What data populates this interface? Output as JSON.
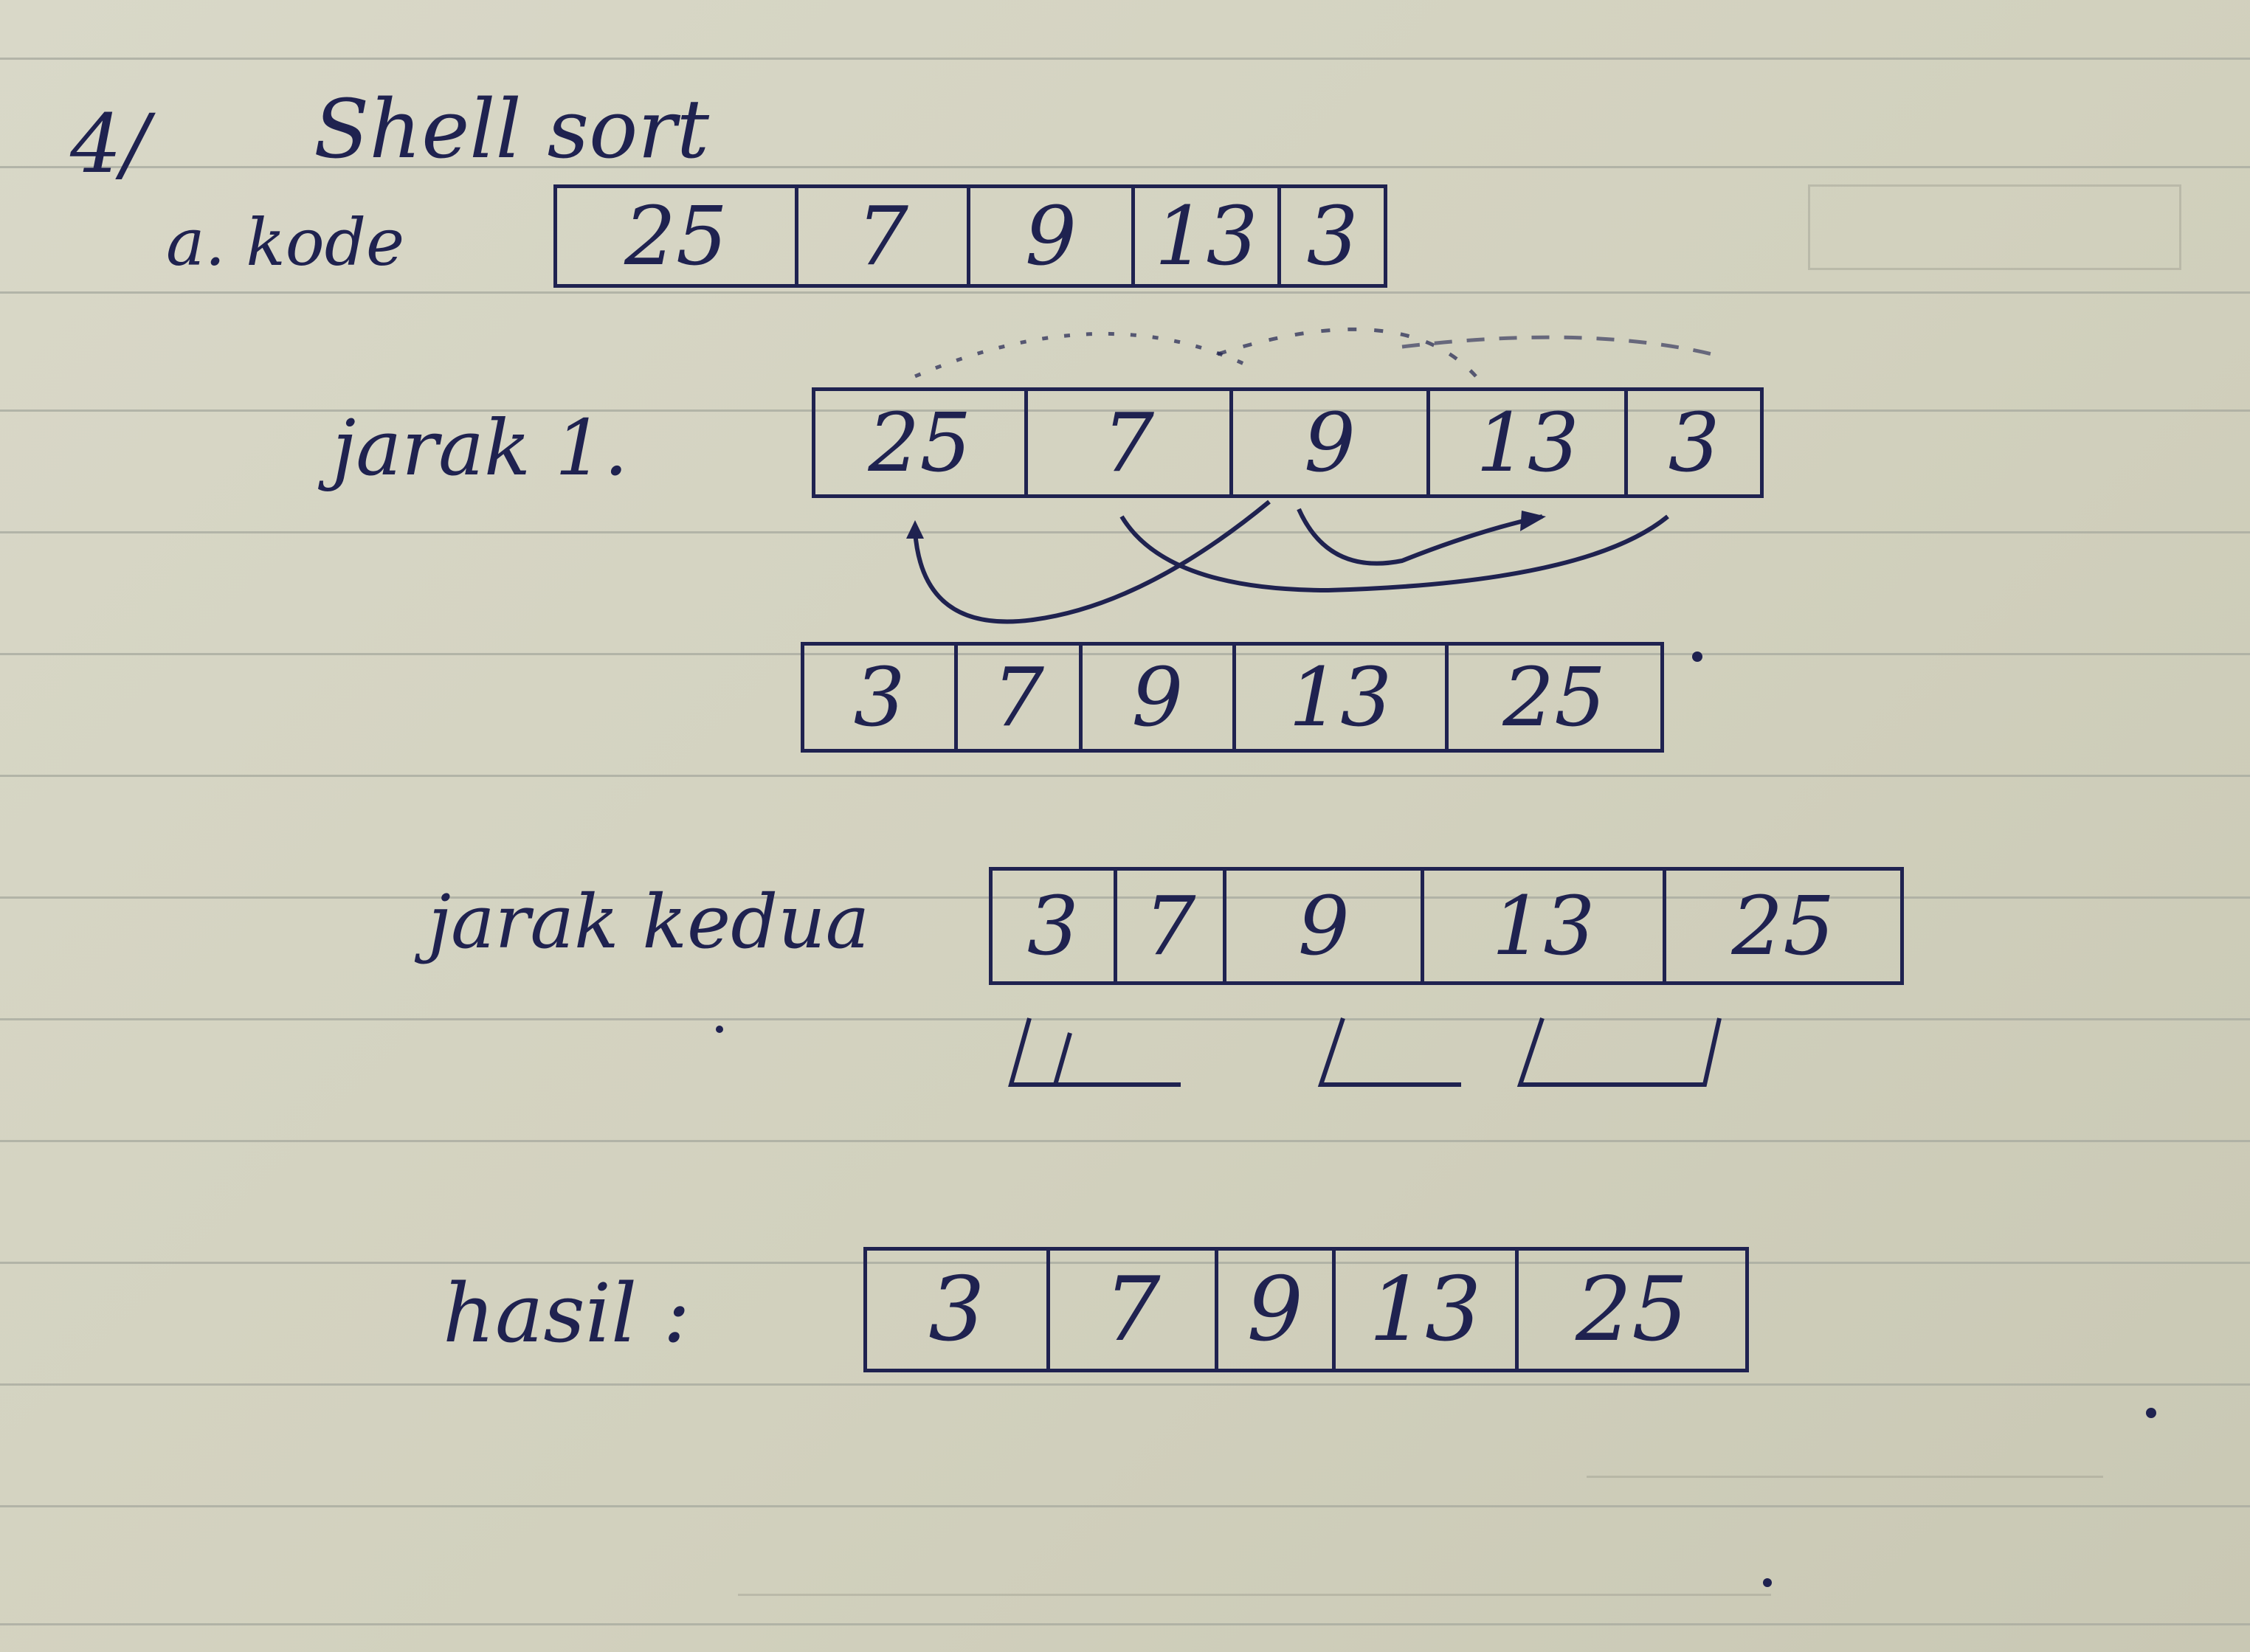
{
  "heading": {
    "number": "4/",
    "title": "Shell sort"
  },
  "initial": {
    "label": "a. kode",
    "values": [
      "25",
      "7",
      "9",
      "13",
      "3"
    ]
  },
  "step1": {
    "label": "jarak 1.",
    "values": [
      "25",
      "7",
      "9",
      "13",
      "3"
    ],
    "result": [
      "3",
      "7",
      "9",
      "13",
      "25"
    ]
  },
  "step2": {
    "label": "jarak kedua",
    "values": [
      "3",
      "7",
      "9",
      "13",
      "25"
    ]
  },
  "final": {
    "label": "hasil :",
    "values": [
      "3",
      "7",
      "9",
      "13",
      "25"
    ]
  },
  "colors": {
    "ink": "#1f2250",
    "paper": "#d6d5c3",
    "rule": "#a9aba0"
  }
}
